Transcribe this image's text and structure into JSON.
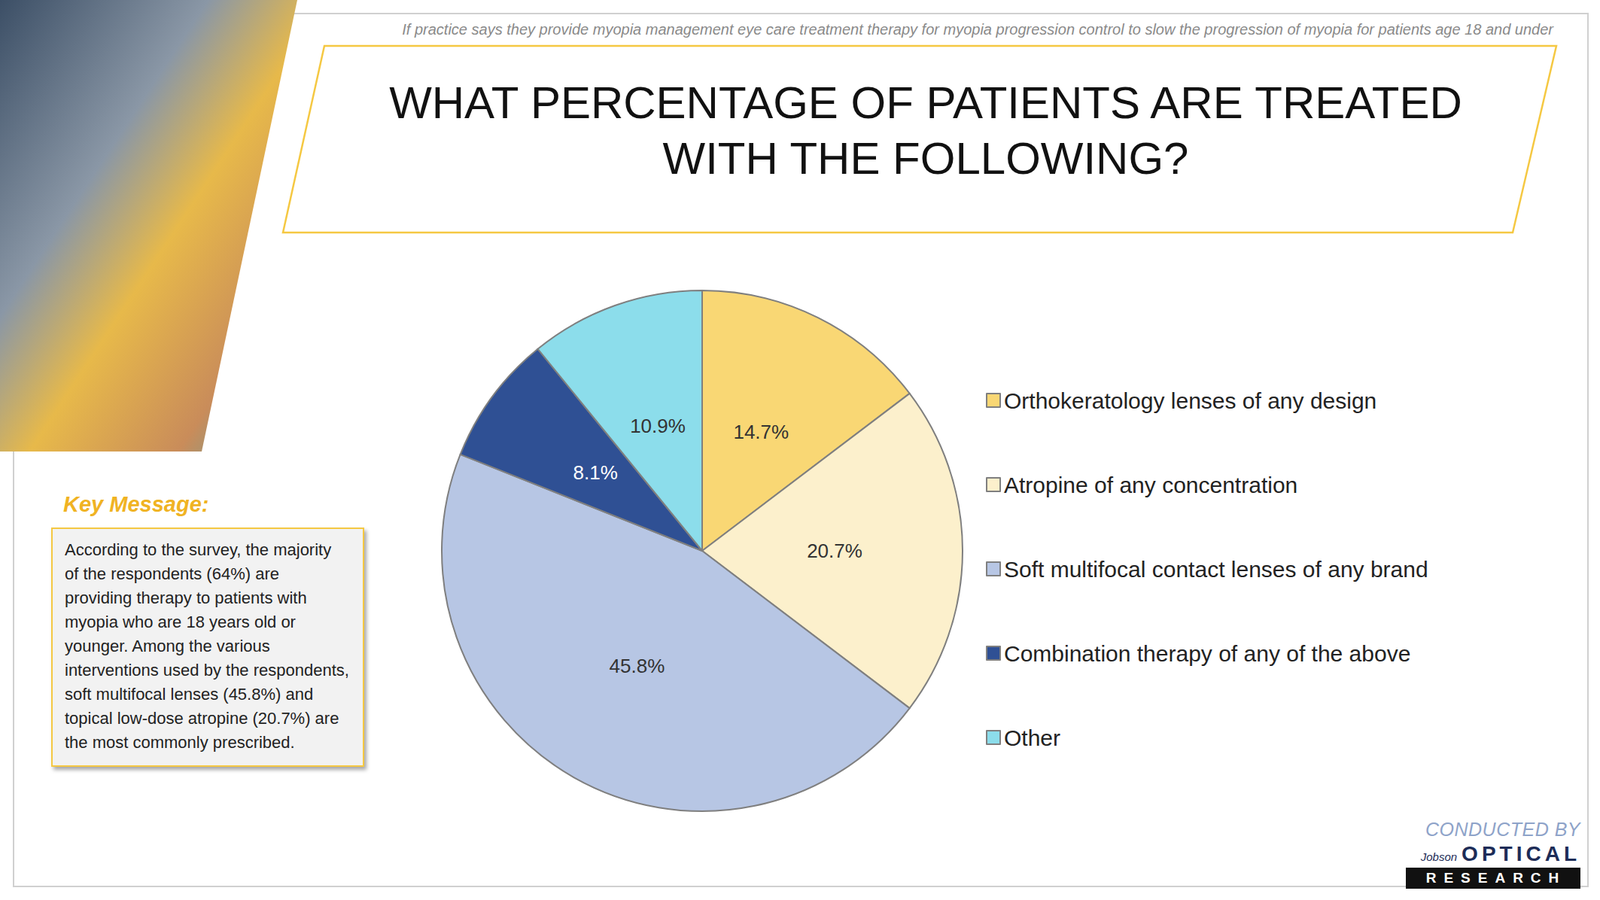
{
  "chart_data": {
    "type": "pie",
    "title": "WHAT PERCENTAGE OF PATIENTS ARE TREATED WITH THE FOLLOWING?",
    "subtitle": "If practice says they provide myopia management eye care treatment therapy for myopia progression control to slow the progression of myopia for patients age 18 and under",
    "categories": [
      "Orthokeratology lenses of any design",
      "Atropine of any concentration",
      "Soft multifocal contact lenses of any brand",
      "Combination therapy of any of the above",
      "Other"
    ],
    "values": [
      14.7,
      20.7,
      45.8,
      8.1,
      10.9
    ],
    "value_labels": [
      "14.7%",
      "20.7%",
      "45.8%",
      "8.1%",
      "10.9%"
    ],
    "colors": [
      "#F9D774",
      "#FCF0CC",
      "#B7C6E4",
      "#2F5094",
      "#8CDDEB"
    ],
    "data_labels": true,
    "legend": "right",
    "annotations": [
      "Key Message:",
      "According to the survey, the majority of the respondents (64%) are providing therapy to patients with myopia who are 18 years old or younger. Among the various interventions used by the respondents, soft multifocal lenses (45.8%) and topical low-dose atropine (20.7%) are the most commonly prescribed.",
      "CONDUCTED BY",
      "Jobson",
      "OPTICAL",
      "RESEARCH"
    ]
  }
}
